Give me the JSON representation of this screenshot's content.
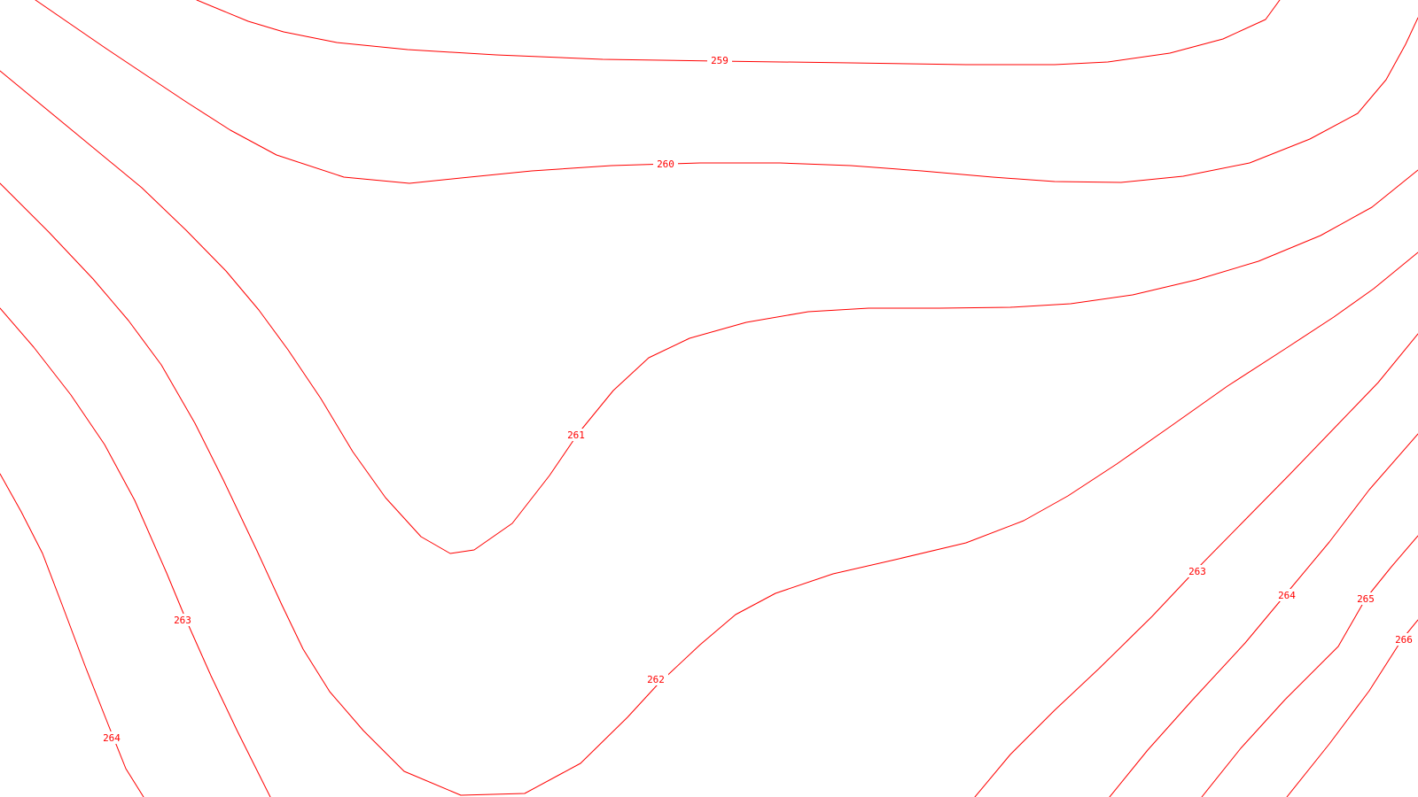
{
  "map": {
    "line_color": "#ff0000",
    "background_color": "#ffffff",
    "contours": [
      {
        "elevation": "259"
      },
      {
        "elevation": "260"
      },
      {
        "elevation": "261"
      },
      {
        "elevation": "262"
      },
      {
        "elevation": "263"
      },
      {
        "elevation": "264"
      },
      {
        "elevation": "263"
      },
      {
        "elevation": "264"
      },
      {
        "elevation": "265"
      },
      {
        "elevation": "266"
      }
    ]
  }
}
